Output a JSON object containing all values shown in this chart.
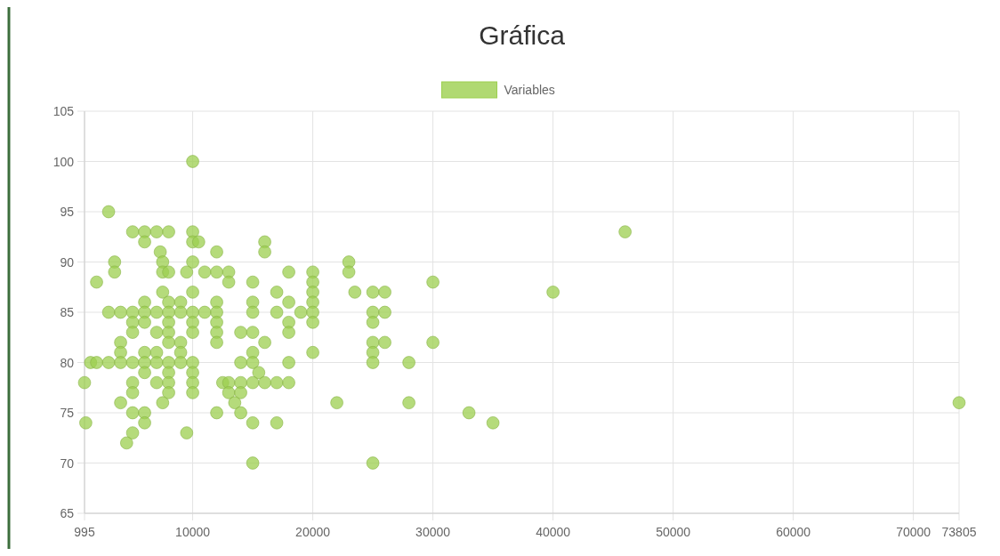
{
  "chart_data": {
    "type": "scatter",
    "title": "Gráfica",
    "legend": "top",
    "grid": true,
    "marker": "circle",
    "xlim": [
      995,
      73805
    ],
    "xticks": [
      995,
      10000,
      20000,
      30000,
      40000,
      50000,
      60000,
      70000,
      73805
    ],
    "ylim": [
      65,
      105
    ],
    "yticks": [
      65,
      70,
      75,
      80,
      85,
      90,
      95,
      100,
      105
    ],
    "series": [
      {
        "name": "Variables",
        "color": "#9ccf4f",
        "x": [
          10000,
          3000,
          5000,
          6000,
          8000,
          10000,
          7000,
          6000,
          10000,
          10500,
          16000,
          16000,
          12000,
          7300,
          3500,
          7500,
          10000,
          23000,
          3500,
          7500,
          8000,
          9500,
          11000,
          12000,
          13000,
          18000,
          20000,
          23000,
          2000,
          15000,
          20000,
          30000,
          13000,
          7500,
          10000,
          17000,
          20000,
          23500,
          25000,
          26000,
          40000,
          6000,
          8000,
          9000,
          12000,
          18000,
          20000,
          15000,
          3000,
          4000,
          5000,
          6000,
          7000,
          8000,
          9000,
          10000,
          11000,
          12000,
          15000,
          17000,
          19000,
          20000,
          25000,
          26000,
          5000,
          6000,
          8000,
          10000,
          12000,
          18000,
          20000,
          25000,
          5000,
          7000,
          8000,
          10000,
          12000,
          14000,
          15000,
          18000,
          4000,
          8000,
          9000,
          12000,
          16000,
          25000,
          26000,
          30000,
          4000,
          6000,
          7000,
          9000,
          15000,
          20000,
          25000,
          1500,
          2000,
          3000,
          4000,
          5000,
          6000,
          7000,
          8000,
          9000,
          10000,
          14000,
          15000,
          18000,
          25000,
          28000,
          6000,
          8000,
          10000,
          15500,
          995,
          5000,
          7000,
          8000,
          10000,
          12500,
          13000,
          14000,
          15000,
          16000,
          17000,
          18000,
          5000,
          8000,
          10000,
          13000,
          14000,
          4000,
          7500,
          13500,
          22000,
          28000,
          73805,
          5000,
          6000,
          12000,
          14000,
          33000,
          1100,
          6000,
          15000,
          17000,
          35000,
          5000,
          9500,
          4500,
          15000,
          25000,
          46000
        ],
        "values": [
          100,
          95,
          93,
          93,
          93,
          93,
          93,
          92,
          92,
          92,
          92,
          91,
          91,
          91,
          90,
          90,
          90,
          90,
          89,
          89,
          89,
          89,
          89,
          89,
          89,
          89,
          89,
          89,
          88,
          88,
          88,
          88,
          88,
          87,
          87,
          87,
          87,
          87,
          87,
          87,
          87,
          86,
          86,
          86,
          86,
          86,
          86,
          86,
          85,
          85,
          85,
          85,
          85,
          85,
          85,
          85,
          85,
          85,
          85,
          85,
          85,
          85,
          85,
          85,
          84,
          84,
          84,
          84,
          84,
          84,
          84,
          84,
          83,
          83,
          83,
          83,
          83,
          83,
          83,
          83,
          82,
          82,
          82,
          82,
          82,
          82,
          82,
          82,
          81,
          81,
          81,
          81,
          81,
          81,
          81,
          80,
          80,
          80,
          80,
          80,
          80,
          80,
          80,
          80,
          80,
          80,
          80,
          80,
          80,
          80,
          79,
          79,
          79,
          79,
          78,
          78,
          78,
          78,
          78,
          78,
          78,
          78,
          78,
          78,
          78,
          78,
          77,
          77,
          77,
          77,
          77,
          76,
          76,
          76,
          76,
          76,
          76,
          75,
          75,
          75,
          75,
          75,
          74,
          74,
          74,
          74,
          74,
          73,
          73,
          72,
          70,
          70,
          93
        ]
      }
    ]
  }
}
